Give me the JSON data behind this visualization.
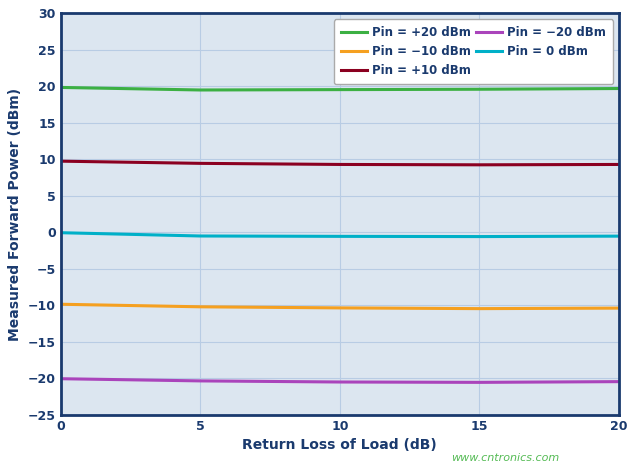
{
  "title": "",
  "xlabel": "Return Loss of Load (dB)",
  "ylabel": "Measured Forward Power (dBm)",
  "xlim": [
    0,
    20
  ],
  "ylim": [
    -25,
    30
  ],
  "xticks": [
    0,
    5,
    10,
    15,
    20
  ],
  "yticks": [
    -25,
    -20,
    -15,
    -10,
    -5,
    0,
    5,
    10,
    15,
    20,
    25,
    30
  ],
  "background_color": "#dce6f0",
  "figure_facecolor": "#ffffff",
  "series": [
    {
      "label": "Pin = +20 dBm",
      "color": "#3cb043",
      "x": [
        0,
        5,
        10,
        15,
        20
      ],
      "y": [
        19.85,
        19.5,
        19.55,
        19.6,
        19.7
      ]
    },
    {
      "label": "Pin = +10 dBm",
      "color": "#8b0020",
      "x": [
        0,
        5,
        10,
        15,
        20
      ],
      "y": [
        9.75,
        9.45,
        9.3,
        9.25,
        9.3
      ]
    },
    {
      "label": "Pin = 0 dBm",
      "color": "#00b0c8",
      "x": [
        0,
        5,
        10,
        15,
        20
      ],
      "y": [
        -0.05,
        -0.5,
        -0.55,
        -0.58,
        -0.52
      ]
    },
    {
      "label": "Pin = −10 dBm",
      "color": "#f5a020",
      "x": [
        0,
        5,
        10,
        15,
        20
      ],
      "y": [
        -9.85,
        -10.2,
        -10.35,
        -10.45,
        -10.38
      ]
    },
    {
      "label": "Pin = −20 dBm",
      "color": "#aa44bb",
      "x": [
        0,
        5,
        10,
        15,
        20
      ],
      "y": [
        -20.05,
        -20.35,
        -20.5,
        -20.55,
        -20.45
      ]
    }
  ],
  "legend_order": [
    0,
    3,
    1,
    4,
    2
  ],
  "watermark": "www.cntronics.com",
  "watermark_color": "#55bb55",
  "spine_color": "#1a3a6e",
  "tick_color": "#1a3a6e",
  "label_color": "#1a3a6e",
  "grid_color": "#b8cce4",
  "linewidth": 2.2
}
